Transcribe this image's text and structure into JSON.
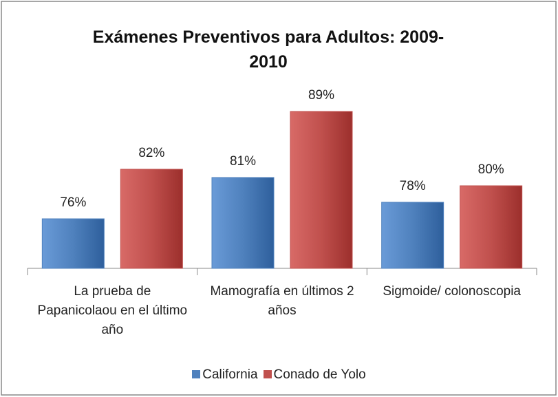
{
  "chart_data": {
    "type": "bar",
    "title": "Exámenes Preventivos para Adultos: 2009-2010",
    "categories": [
      "La prueba de Papanicolaou en el último año",
      "Mamografía en últimos 2 años",
      "Sigmoide/ colonoscopia"
    ],
    "series": [
      {
        "name": "California",
        "color": "#4f81bd",
        "values": [
          76,
          81,
          78
        ],
        "value_labels": [
          "76%",
          "81%",
          "78%"
        ]
      },
      {
        "name": "Conado de Yolo",
        "color": "#c0504d",
        "values": [
          82,
          89,
          80
        ],
        "value_labels": [
          "82%",
          "89%",
          "80%"
        ]
      }
    ],
    "ylim": [
      70,
      90
    ],
    "legend": "bottom"
  }
}
